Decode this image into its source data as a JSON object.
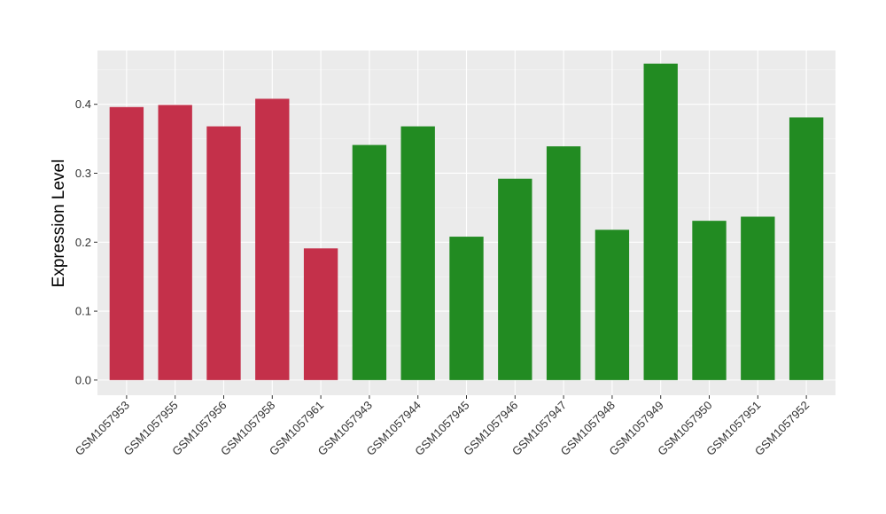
{
  "chart_data": {
    "type": "bar",
    "title": "",
    "xlabel": "",
    "ylabel": "Expression Level",
    "ylim": [
      -0.022,
      0.478
    ],
    "yticks": [
      0.0,
      0.1,
      0.2,
      0.3,
      0.4
    ],
    "ytick_labels": [
      "0.0",
      "0.1",
      "0.2",
      "0.3",
      "0.4"
    ],
    "grid": true,
    "legend": "none",
    "categories": [
      "GSM1057953",
      "GSM1057955",
      "GSM1057956",
      "GSM1057958",
      "GSM1057961",
      "GSM1057943",
      "GSM1057944",
      "GSM1057945",
      "GSM1057946",
      "GSM1057947",
      "GSM1057948",
      "GSM1057949",
      "GSM1057950",
      "GSM1057951",
      "GSM1057952"
    ],
    "values": [
      0.396,
      0.399,
      0.368,
      0.408,
      0.191,
      0.341,
      0.368,
      0.208,
      0.292,
      0.339,
      0.218,
      0.459,
      0.231,
      0.237,
      0.381
    ],
    "bar_colors": [
      "#c4304a",
      "#c4304a",
      "#c4304a",
      "#c4304a",
      "#c4304a",
      "#228b22",
      "#228b22",
      "#228b22",
      "#228b22",
      "#228b22",
      "#228b22",
      "#228b22",
      "#228b22",
      "#228b22",
      "#228b22"
    ]
  },
  "colors": {
    "panel_background": "#ebebeb",
    "grid_major": "#ffffff",
    "grid_minor": "#f5f5f5",
    "group_1": "#c4304a",
    "group_2": "#228b22"
  }
}
